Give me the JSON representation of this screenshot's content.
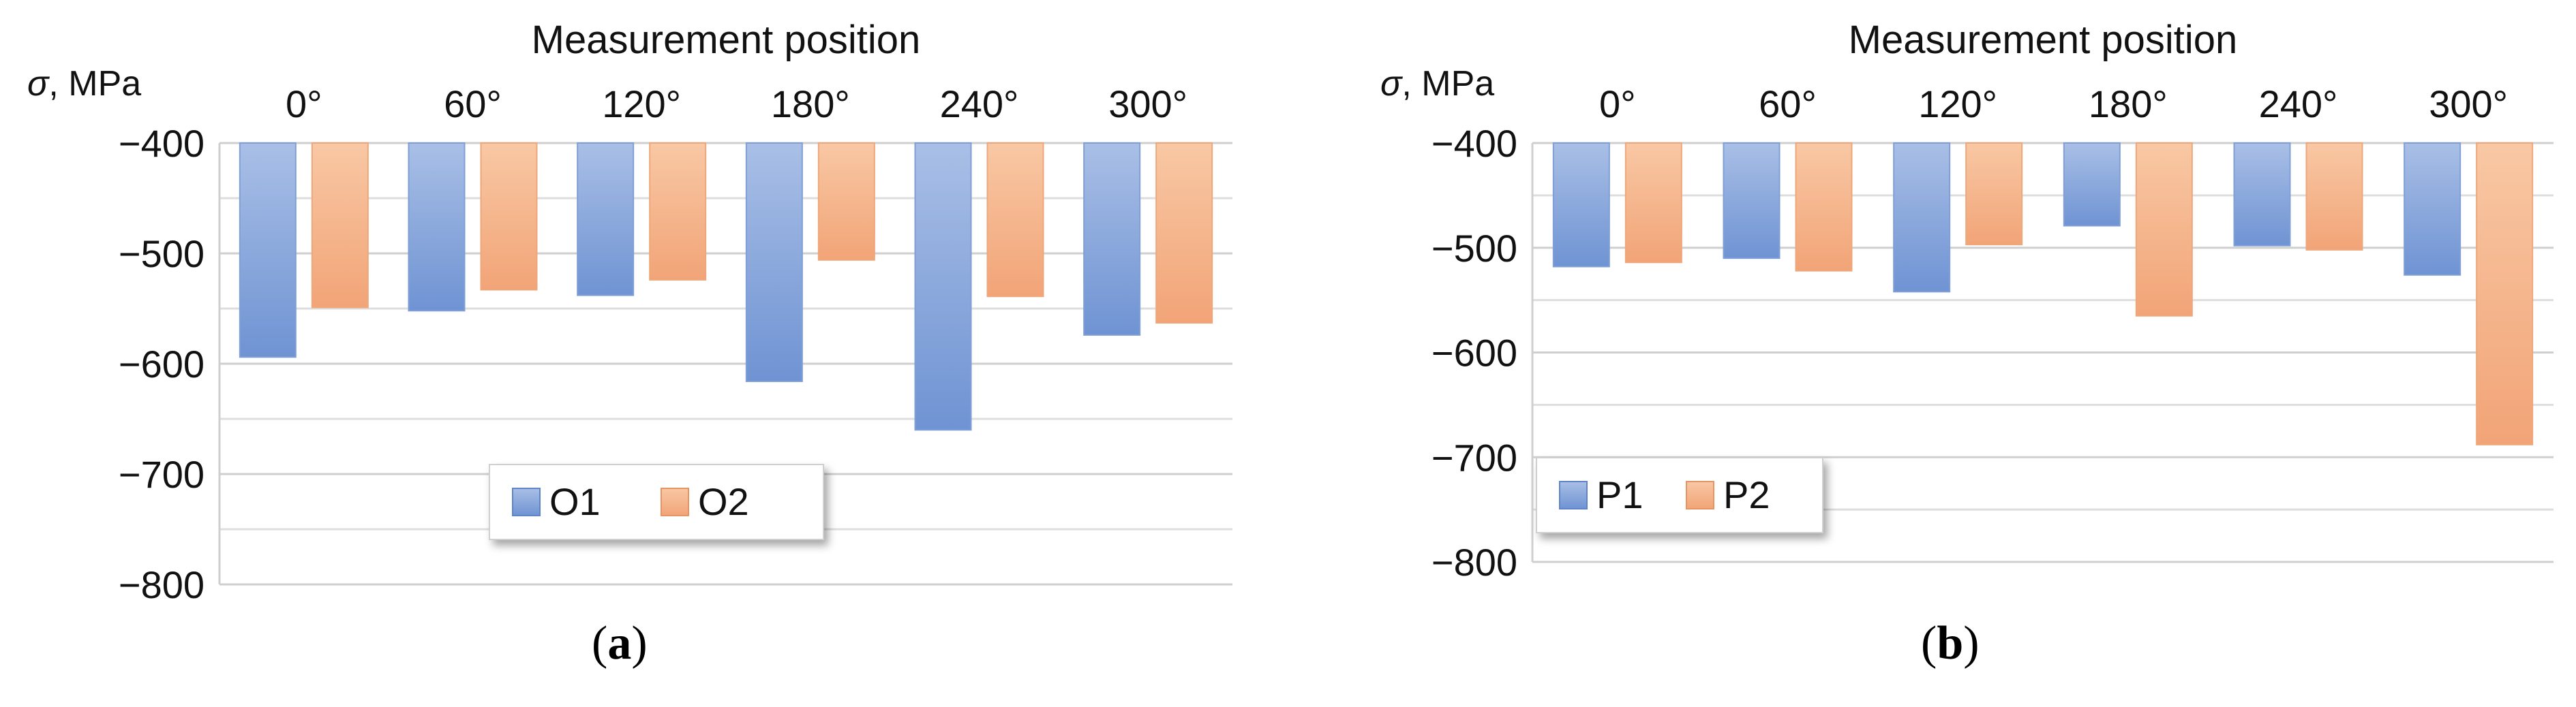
{
  "chart_data": [
    {
      "type": "bar",
      "panel_label": "a",
      "title": "Measurement position",
      "ylabel": "σ, MPa",
      "categories": [
        "0°",
        "60°",
        "120°",
        "180°",
        "240°",
        "300°"
      ],
      "yticks": [
        "−400",
        "−500",
        "−600",
        "−700",
        "−800"
      ],
      "ylim": [
        -800,
        -400
      ],
      "bar_base": -400,
      "grid": true,
      "legend_position": "bottom-center",
      "series": [
        {
          "name": "O1",
          "color": "#8eaadb",
          "values": [
            -594,
            -552,
            -538,
            -616,
            -660,
            -574
          ]
        },
        {
          "name": "O2",
          "color": "#f4b183",
          "values": [
            -549,
            -533,
            -524,
            -506,
            -539,
            -563
          ]
        }
      ]
    },
    {
      "type": "bar",
      "panel_label": "b",
      "title": "Measurement position",
      "ylabel": "σ, MPa",
      "categories": [
        "0°",
        "60°",
        "120°",
        "180°",
        "240°",
        "300°"
      ],
      "yticks": [
        "−400",
        "−500",
        "−600",
        "−700",
        "−800"
      ],
      "ylim": [
        -800,
        -400
      ],
      "bar_base": -400,
      "grid": true,
      "legend_position": "bottom-left",
      "series": [
        {
          "name": "P1",
          "color": "#8eaadb",
          "values": [
            -518,
            -510,
            -542,
            -479,
            -498,
            -526
          ]
        },
        {
          "name": "P2",
          "color": "#f4b183",
          "values": [
            -514,
            -522,
            -497,
            -565,
            -502,
            -688
          ]
        }
      ]
    }
  ]
}
